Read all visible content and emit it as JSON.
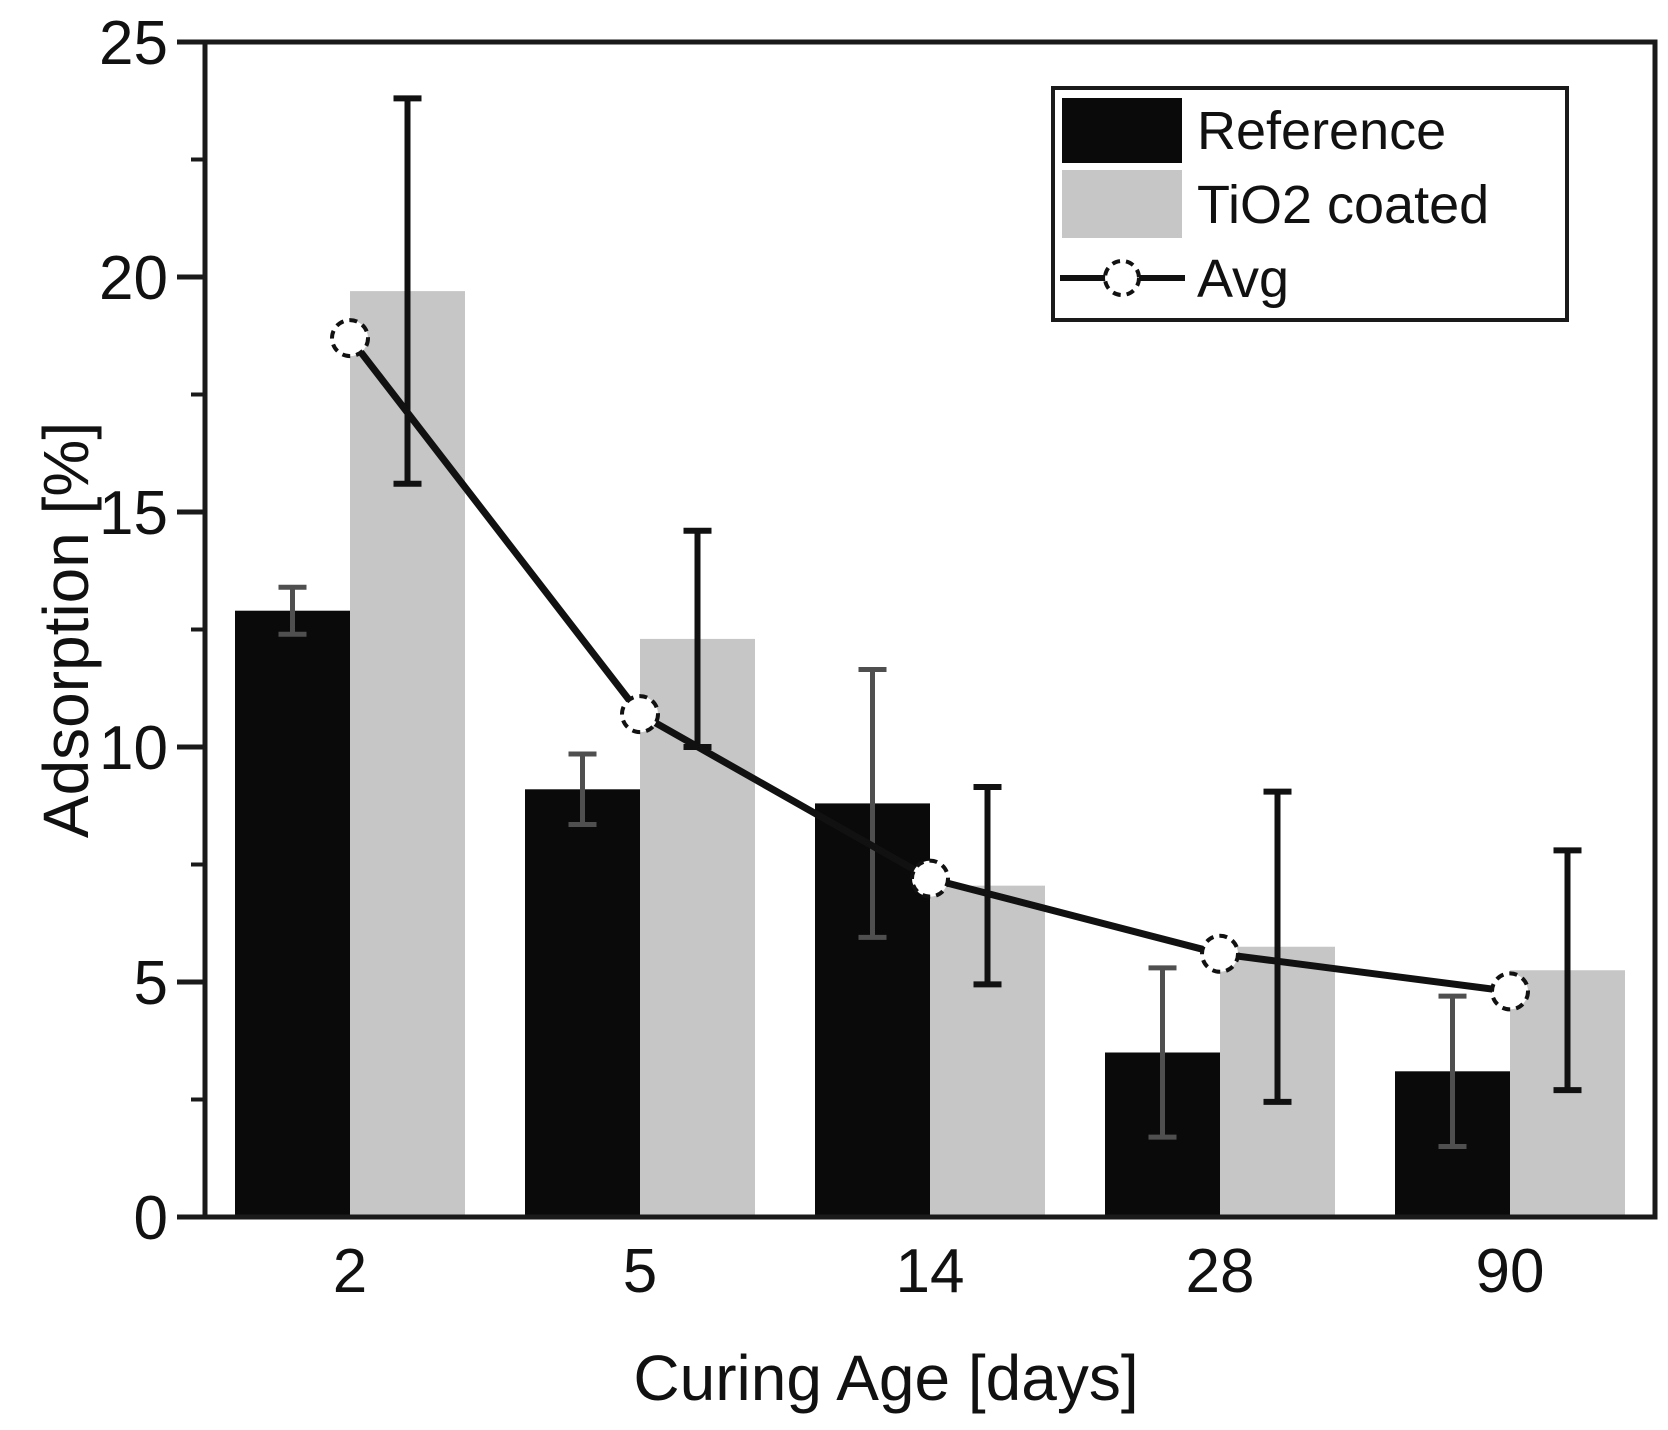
{
  "figure": {
    "background": "#ffffff"
  },
  "chart_data": {
    "type": "bar",
    "title": "",
    "xlabel": "Curing Age [days]",
    "ylabel": "Adsorption [%]",
    "categories": [
      "2",
      "5",
      "14",
      "28",
      "90"
    ],
    "ylim": [
      0,
      25
    ],
    "yticks_major": [
      0,
      5,
      10,
      15,
      20,
      25
    ],
    "ytick_labels": [
      "0",
      "5",
      "10",
      "15",
      "20",
      "25"
    ],
    "yticks_minor": [
      2.5,
      7.5,
      12.5,
      17.5,
      22.5
    ],
    "grid": false,
    "legend_position": "top-right",
    "frame_color": "#1a1a1a",
    "series": [
      {
        "name": "Reference",
        "type": "bar",
        "color": "#0a0a0a",
        "values": [
          12.9,
          9.1,
          8.8,
          3.5,
          3.1
        ],
        "errors": [
          0.5,
          0.75,
          2.85,
          1.8,
          1.6
        ],
        "error_color": "#4f4f4f"
      },
      {
        "name": "TiO2 coated",
        "type": "bar",
        "color": "#c6c6c6",
        "values": [
          19.7,
          12.3,
          7.05,
          5.75,
          5.25
        ],
        "errors": [
          4.1,
          2.3,
          2.1,
          3.3,
          2.55
        ],
        "error_color": "#111111"
      },
      {
        "name": "Avg",
        "type": "line",
        "color": "#111111",
        "marker": "open-circle-dashed",
        "values": [
          18.7,
          10.7,
          7.2,
          5.6,
          4.8
        ]
      }
    ]
  }
}
